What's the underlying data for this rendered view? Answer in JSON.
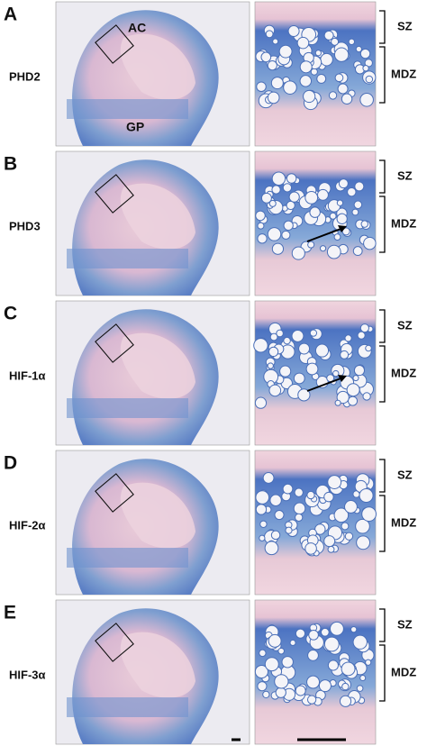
{
  "panels": [
    {
      "letter": "A",
      "label": "PHD2",
      "annotations": [
        "AC",
        "GP"
      ],
      "zones": [
        "SZ",
        "MDZ"
      ]
    },
    {
      "letter": "B",
      "label": "PHD3",
      "zones": [
        "SZ",
        "MDZ"
      ]
    },
    {
      "letter": "C",
      "label": "HIF-1α",
      "zones": [
        "SZ",
        "MDZ"
      ]
    },
    {
      "letter": "D",
      "label": "HIF-2α",
      "zones": [
        "SZ",
        "MDZ"
      ]
    },
    {
      "letter": "E",
      "label": "HIF-3α",
      "zones": [
        "SZ",
        "MDZ"
      ]
    }
  ]
}
